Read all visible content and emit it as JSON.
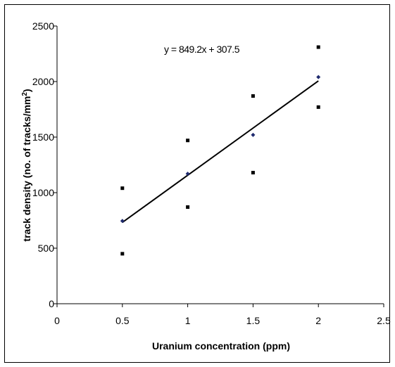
{
  "chart_data": {
    "type": "scatter",
    "title": "",
    "xlabel": "Uranium concentration (ppm)",
    "ylabel": "track density (no. of tracks/mm",
    "ylabel_sup": "2",
    "ylabel_close": ")",
    "xlim": [
      0,
      2.5
    ],
    "ylim": [
      0,
      2500
    ],
    "x_ticks": [
      0,
      0.5,
      1,
      1.5,
      2,
      2.5
    ],
    "x_tick_labels": [
      "0",
      "0.5",
      "1",
      "1.5",
      "2",
      "2.5"
    ],
    "y_ticks": [
      0,
      500,
      1000,
      1500,
      2000,
      2500
    ],
    "y_tick_labels": [
      "0",
      "500",
      "1000",
      "1500",
      "2000",
      "2500"
    ],
    "grid": false,
    "legend": false,
    "series": [
      {
        "marker": "square",
        "color": "#000000",
        "x": [
          0.5,
          0.5,
          1,
          1,
          1.5,
          1.5,
          2,
          2
        ],
        "y": [
          1040,
          450,
          1470,
          870,
          1870,
          1180,
          2310,
          1770
        ]
      },
      {
        "marker": "diamond",
        "color": "#1f2a6e",
        "x": [
          0.5,
          1,
          1.5,
          2
        ],
        "y": [
          745,
          1170,
          1520,
          2040
        ]
      }
    ],
    "trendline": {
      "slope": 849.2,
      "intercept": 307.5,
      "x_range": [
        0.5,
        2
      ],
      "color": "#000000",
      "equation": "y = 849.2x + 307.5"
    }
  }
}
